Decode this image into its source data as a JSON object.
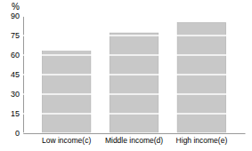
{
  "chart_data": {
    "type": "bar",
    "ylabel": "%",
    "categories": [
      "Low income(c)",
      "Middle income(d)",
      "High income(e)"
    ],
    "values": [
      63.0,
      77.0,
      85.0
    ],
    "color": "#c8c8c8",
    "ylim": [
      0,
      90
    ],
    "yticks": [
      0,
      15,
      30,
      45,
      60,
      75,
      90
    ],
    "grid": true
  }
}
